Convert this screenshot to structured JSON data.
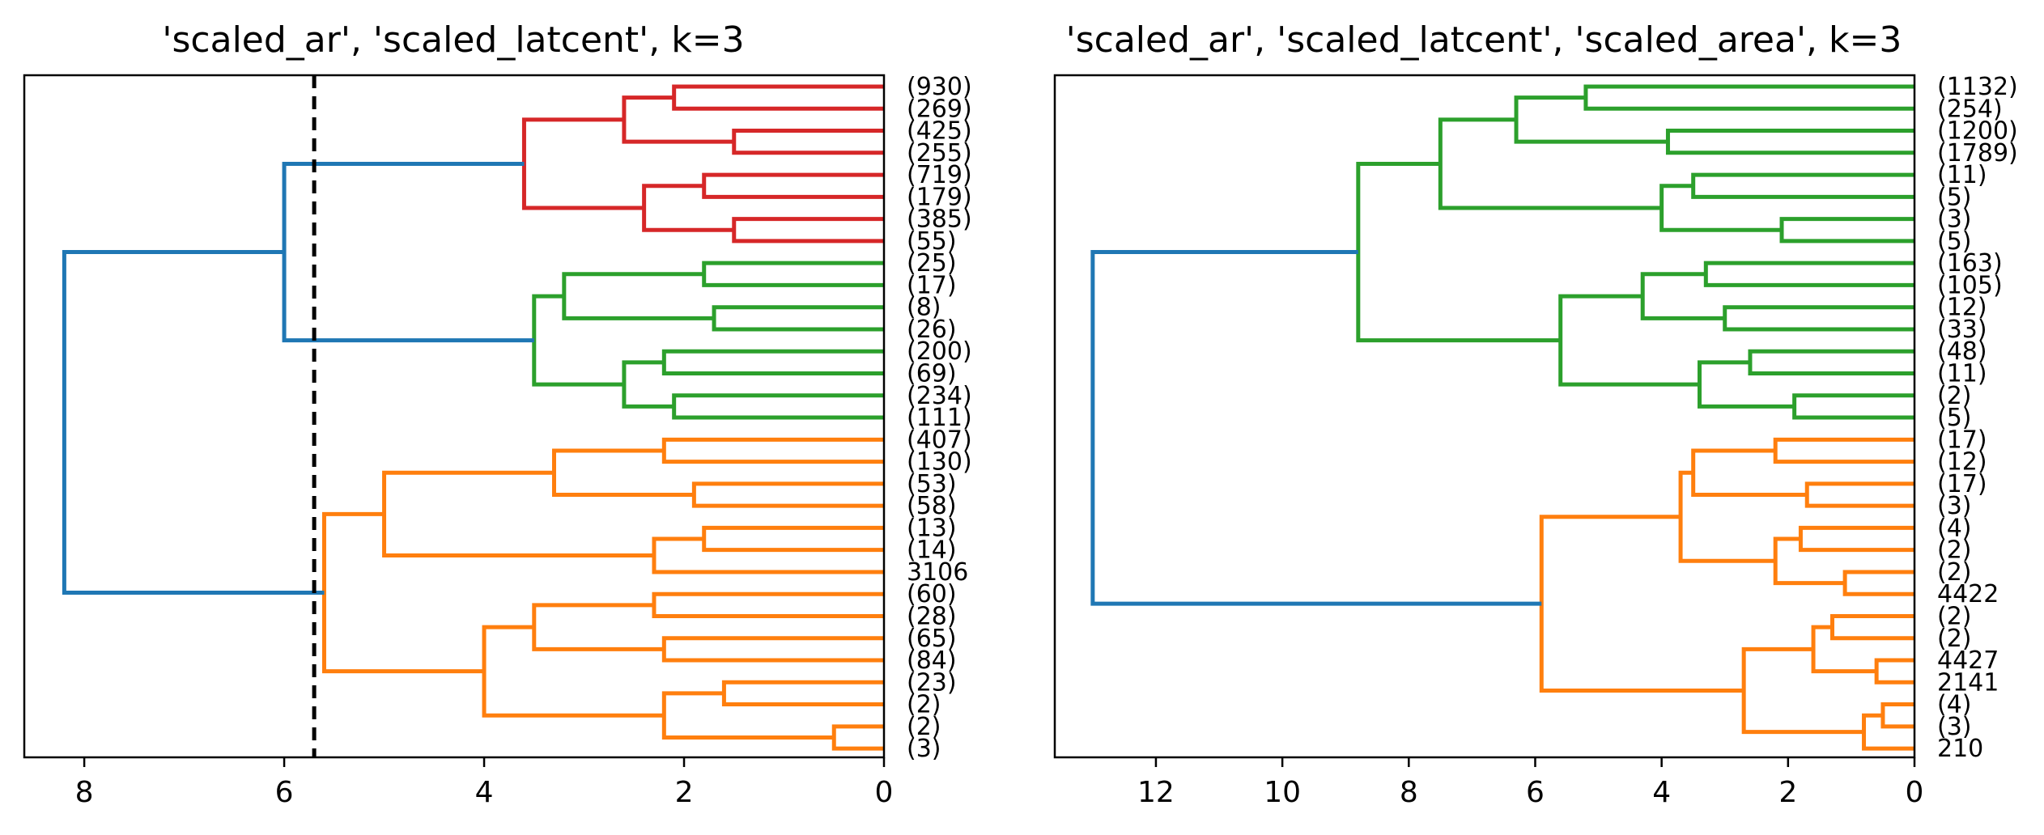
{
  "chart_data": [
    {
      "type": "dendrogram",
      "title": "'scaled_ar', 'scaled_latcent', k=3",
      "orientation": "left",
      "xlim": [
        8.6,
        0
      ],
      "xticks": [
        8,
        6,
        4,
        2,
        0
      ],
      "cut_height": 5.7,
      "leaves": [
        "(930)",
        "(269)",
        "(425)",
        "(255)",
        "(719)",
        "(179)",
        "(385)",
        "(55)",
        "(25)",
        "(17)",
        "(8)",
        "(26)",
        "(200)",
        "(69)",
        "(234)",
        "(111)",
        "(407)",
        "(130)",
        "(53)",
        "(58)",
        "(13)",
        "(14)",
        "3106",
        "(60)",
        "(28)",
        "(65)",
        "(84)",
        "(23)",
        "(2)",
        "(2)",
        "(3)"
      ],
      "colors": {
        "red": "#d62728",
        "green": "#2ca02c",
        "orange": "#ff7f0e",
        "above": "#1f77b4"
      },
      "merges": [
        {
          "a": 0,
          "b": 1,
          "h": 2.1,
          "c": "red"
        },
        {
          "a": 2,
          "b": 3,
          "h": 1.5,
          "c": "red"
        },
        {
          "a": 31,
          "b": 32,
          "h": 2.6,
          "c": "red"
        },
        {
          "a": 4,
          "b": 5,
          "h": 1.8,
          "c": "red"
        },
        {
          "a": 6,
          "b": 7,
          "h": 1.5,
          "c": "red"
        },
        {
          "a": 34,
          "b": 35,
          "h": 2.4,
          "c": "red"
        },
        {
          "a": 33,
          "b": 36,
          "h": 3.6,
          "c": "red"
        },
        {
          "a": 8,
          "b": 9,
          "h": 1.8,
          "c": "green"
        },
        {
          "a": 10,
          "b": 11,
          "h": 1.7,
          "c": "green"
        },
        {
          "a": 38,
          "b": 39,
          "h": 3.2,
          "c": "green"
        },
        {
          "a": 12,
          "b": 13,
          "h": 2.2,
          "c": "green"
        },
        {
          "a": 14,
          "b": 15,
          "h": 2.1,
          "c": "green"
        },
        {
          "a": 41,
          "b": 42,
          "h": 2.6,
          "c": "green"
        },
        {
          "a": 40,
          "b": 43,
          "h": 3.5,
          "c": "green"
        },
        {
          "a": 37,
          "b": 44,
          "h": 6.0,
          "c": "above"
        },
        {
          "a": 16,
          "b": 17,
          "h": 2.2,
          "c": "orange"
        },
        {
          "a": 18,
          "b": 19,
          "h": 1.9,
          "c": "orange"
        },
        {
          "a": 46,
          "b": 47,
          "h": 3.3,
          "c": "orange"
        },
        {
          "a": 20,
          "b": 21,
          "h": 1.8,
          "c": "orange"
        },
        {
          "a": 49,
          "b": 22,
          "h": 2.3,
          "c": "orange"
        },
        {
          "a": 48,
          "b": 50,
          "h": 5.0,
          "c": "orange"
        },
        {
          "a": 23,
          "b": 24,
          "h": 2.3,
          "c": "orange"
        },
        {
          "a": 25,
          "b": 26,
          "h": 2.2,
          "c": "orange"
        },
        {
          "a": 52,
          "b": 53,
          "h": 3.5,
          "c": "orange"
        },
        {
          "a": 27,
          "b": 28,
          "h": 1.6,
          "c": "orange"
        },
        {
          "a": 29,
          "b": 30,
          "h": 0.5,
          "c": "orange"
        },
        {
          "a": 55,
          "b": 56,
          "h": 2.2,
          "c": "orange"
        },
        {
          "a": 54,
          "b": 57,
          "h": 4.0,
          "c": "orange"
        },
        {
          "a": 51,
          "b": 58,
          "h": 5.6,
          "c": "orange"
        },
        {
          "a": 45,
          "b": 59,
          "h": 8.2,
          "c": "above"
        }
      ]
    },
    {
      "type": "dendrogram",
      "title": "'scaled_ar', 'scaled_latcent', 'scaled_area', k=3",
      "orientation": "left",
      "xlim": [
        13.6,
        0
      ],
      "xticks": [
        12,
        10,
        8,
        6,
        4,
        2,
        0
      ],
      "leaves": [
        "(1132)",
        "(254)",
        "(1200)",
        "(1789)",
        "(11)",
        "(5)",
        "(3)",
        "(5)",
        "(163)",
        "(105)",
        "(12)",
        "(33)",
        "(48)",
        "(11)",
        "(2)",
        "(5)",
        "(17)",
        "(12)",
        "(17)",
        "(3)",
        "(4)",
        "(2)",
        "(2)",
        "4422",
        "(2)",
        "(2)",
        "4427",
        "2141",
        "(4)",
        "(3)",
        "210"
      ],
      "colors": {
        "green": "#2ca02c",
        "orange": "#ff7f0e",
        "above": "#1f77b4"
      },
      "merges": [
        {
          "a": 0,
          "b": 1,
          "h": 5.2,
          "c": "green"
        },
        {
          "a": 2,
          "b": 3,
          "h": 3.9,
          "c": "green"
        },
        {
          "a": 31,
          "b": 32,
          "h": 6.3,
          "c": "green"
        },
        {
          "a": 4,
          "b": 5,
          "h": 3.5,
          "c": "green"
        },
        {
          "a": 6,
          "b": 7,
          "h": 2.1,
          "c": "green"
        },
        {
          "a": 34,
          "b": 35,
          "h": 4.0,
          "c": "green"
        },
        {
          "a": 33,
          "b": 36,
          "h": 7.5,
          "c": "green"
        },
        {
          "a": 8,
          "b": 9,
          "h": 3.3,
          "c": "green"
        },
        {
          "a": 10,
          "b": 11,
          "h": 3.0,
          "c": "green"
        },
        {
          "a": 38,
          "b": 39,
          "h": 4.3,
          "c": "green"
        },
        {
          "a": 12,
          "b": 13,
          "h": 2.6,
          "c": "green"
        },
        {
          "a": 14,
          "b": 15,
          "h": 1.9,
          "c": "green"
        },
        {
          "a": 41,
          "b": 42,
          "h": 3.4,
          "c": "green"
        },
        {
          "a": 40,
          "b": 43,
          "h": 5.6,
          "c": "green"
        },
        {
          "a": 37,
          "b": 44,
          "h": 8.8,
          "c": "green"
        },
        {
          "a": 16,
          "b": 17,
          "h": 2.2,
          "c": "orange"
        },
        {
          "a": 18,
          "b": 19,
          "h": 1.7,
          "c": "orange"
        },
        {
          "a": 46,
          "b": 47,
          "h": 3.5,
          "c": "orange"
        },
        {
          "a": 20,
          "b": 21,
          "h": 1.8,
          "c": "orange"
        },
        {
          "a": 22,
          "b": 23,
          "h": 1.1,
          "c": "orange"
        },
        {
          "a": 49,
          "b": 50,
          "h": 2.2,
          "c": "orange"
        },
        {
          "a": 48,
          "b": 51,
          "h": 3.7,
          "c": "orange"
        },
        {
          "a": 24,
          "b": 25,
          "h": 1.3,
          "c": "orange"
        },
        {
          "a": 26,
          "b": 27,
          "h": 0.6,
          "c": "orange"
        },
        {
          "a": 53,
          "b": 54,
          "h": 1.6,
          "c": "orange"
        },
        {
          "a": 28,
          "b": 29,
          "h": 0.5,
          "c": "orange"
        },
        {
          "a": 56,
          "b": 30,
          "h": 0.8,
          "c": "orange"
        },
        {
          "a": 55,
          "b": 57,
          "h": 2.7,
          "c": "orange"
        },
        {
          "a": 52,
          "b": 58,
          "h": 5.9,
          "c": "orange"
        },
        {
          "a": 45,
          "b": 59,
          "h": 13.0,
          "c": "above"
        }
      ]
    }
  ]
}
